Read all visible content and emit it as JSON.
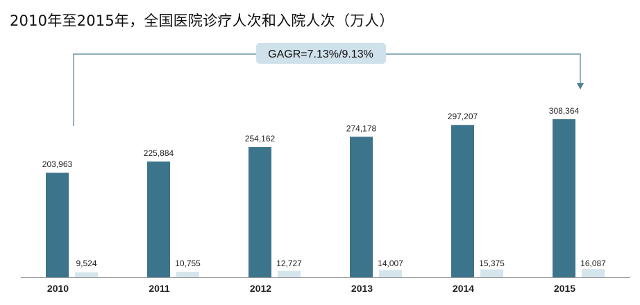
{
  "title": "2010年至2015年，全国医院诊疗人次和入院人次（万人）",
  "cagr_label": "GAGR=7.13%/9.13%",
  "colors": {
    "series_1": "#3c748b",
    "series_2": "#d4e5ec",
    "annotation_box": "#cfe1ea",
    "annotation_line": "#4d7e96",
    "axis": "#999999"
  },
  "chart_data": {
    "type": "bar",
    "title": "2010年至2015年，全国医院诊疗人次和入院人次（万人）",
    "categories": [
      "2010",
      "2011",
      "2012",
      "2013",
      "2014",
      "2015"
    ],
    "series": [
      {
        "values": [
          203963,
          225884,
          254162,
          274178,
          297207,
          308364
        ],
        "labels": [
          "203,963",
          "225,884",
          "254,162",
          "274,178",
          "297,207",
          "308,364"
        ]
      },
      {
        "values": [
          9524,
          10755,
          12727,
          14007,
          15375,
          16087
        ],
        "labels": [
          "9,524",
          "10,755",
          "12,727",
          "14,007",
          "15,375",
          "16,087"
        ]
      }
    ],
    "annotation": "GAGR=7.13%/9.13%",
    "xlabel": "",
    "ylabel": "",
    "y_axis_visible": false,
    "grid": false,
    "legend": "none"
  }
}
